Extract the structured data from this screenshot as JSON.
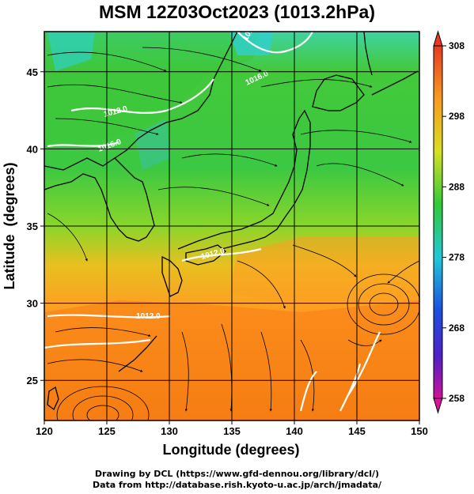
{
  "title": "MSM 12Z03Oct2023 (1013.2hPa)",
  "map": {
    "xlabel": "Longitude (degrees)",
    "ylabel": "Latitude  (degrees)",
    "lon_range": [
      120,
      150
    ],
    "lat_range": [
      22.4,
      47.6
    ],
    "lon_ticks": [
      "120",
      "125",
      "130",
      "135",
      "140",
      "145",
      "150"
    ],
    "lat_ticks": [
      "25",
      "30",
      "35",
      "40",
      "45"
    ],
    "contour_labels": [
      "1016.0",
      "1016.0",
      "1012.0",
      "1016.0",
      "1012.0",
      "1012.0",
      "1012.0",
      "1012.0"
    ]
  },
  "colorbar": {
    "min": 258,
    "max": 308,
    "tick_labels": [
      "308",
      "298",
      "288",
      "278",
      "268",
      "258"
    ]
  },
  "credits": {
    "line1": "Drawing by DCL (https://www.gfd-dennou.org/library/dcl/)",
    "line2": "Data from http://database.rish.kyoto-u.ac.jp/arch/jmadata/"
  },
  "colors": {
    "cold": "#33d6c0",
    "green": "#2fca2c",
    "yellow_green": "#a8dc28",
    "warm": "#ffa020",
    "hot": "#f47a10",
    "coastline": "#000000",
    "isobar": "#ffffff"
  }
}
